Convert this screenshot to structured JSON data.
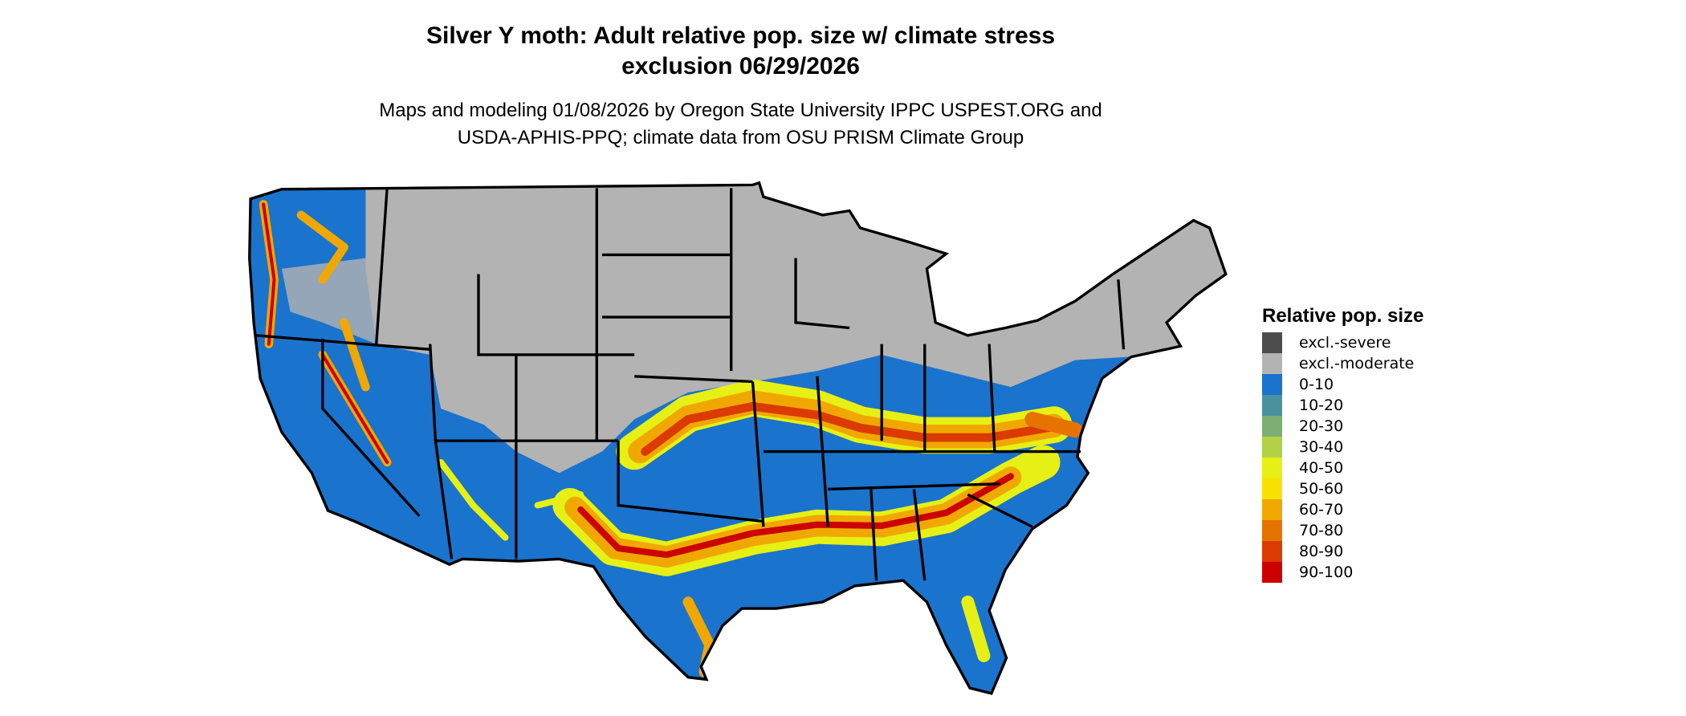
{
  "title": {
    "line1": "Silver Y moth: Adult relative pop. size w/ climate stress",
    "line2": "exclusion 06/29/2026"
  },
  "subtitle": {
    "line1": "Maps and modeling 01/08/2026 by Oregon State University IPPC USPEST.ORG and",
    "line2": "USDA-APHIS-PPQ; climate data from OSU PRISM Climate Group"
  },
  "legend": {
    "title": "Relative pop. size",
    "items": [
      {
        "label": "excl.-severe",
        "color": "#4d4d4d"
      },
      {
        "label": "excl.-moderate",
        "color": "#b3b3b3"
      },
      {
        "label": "0-10",
        "color": "#1a73cc"
      },
      {
        "label": "10-20",
        "color": "#4a919e"
      },
      {
        "label": "20-30",
        "color": "#7dae73"
      },
      {
        "label": "30-40",
        "color": "#b3d046"
      },
      {
        "label": "40-50",
        "color": "#e6f014"
      },
      {
        "label": "50-60",
        "color": "#f9e200"
      },
      {
        "label": "60-70",
        "color": "#f0a800"
      },
      {
        "label": "70-80",
        "color": "#e67300"
      },
      {
        "label": "80-90",
        "color": "#db3a00"
      },
      {
        "label": "90-100",
        "color": "#cc0000"
      }
    ]
  }
}
